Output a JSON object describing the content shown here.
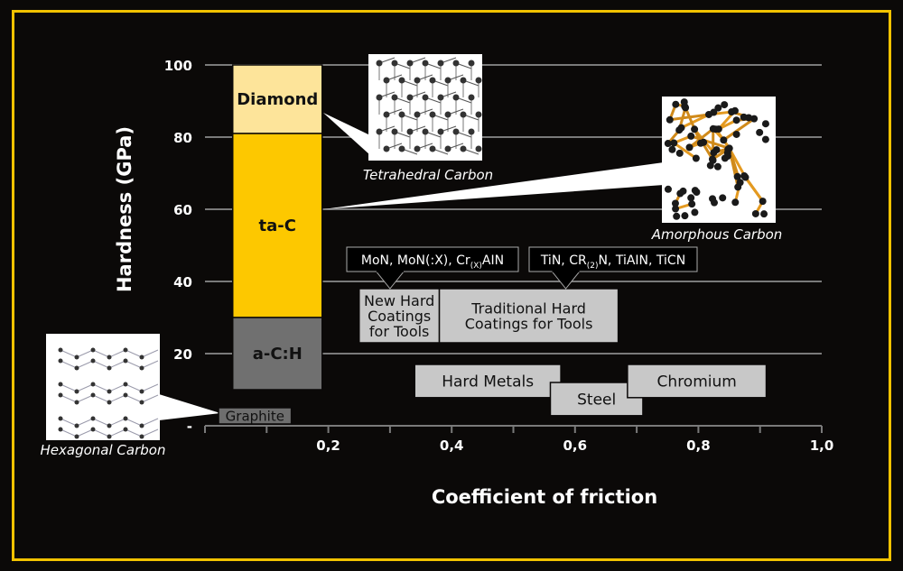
{
  "chart_data": {
    "type": "bar",
    "xlabel": "Coefficient of friction",
    "ylabel": "Hardness (GPa)",
    "xlim": [
      0,
      1.0
    ],
    "ylim": [
      0,
      100
    ],
    "x_ticks": [
      "0,2",
      "0,4",
      "0,6",
      "0,8",
      "1,0"
    ],
    "y_ticks": [
      "-",
      "20",
      "40",
      "60",
      "80",
      "100"
    ],
    "grid": true,
    "materials": [
      {
        "name": "Diamond",
        "friction": [
          0.045,
          0.19
        ],
        "hardness": [
          81,
          100
        ],
        "color": "#fde49a",
        "text_color": "#111111"
      },
      {
        "name": "ta-C",
        "friction": [
          0.045,
          0.19
        ],
        "hardness": [
          30,
          81
        ],
        "color": "#fdc800",
        "text_color": "#111111"
      },
      {
        "name": "a-C:H",
        "friction": [
          0.045,
          0.19
        ],
        "hardness": [
          10,
          30
        ],
        "color": "#707070",
        "text_color": "#111111"
      },
      {
        "name": "Graphite",
        "friction": [
          0.022,
          0.14
        ],
        "hardness": [
          0.5,
          5
        ],
        "color": "#6e6e6e",
        "text_color": "#111111"
      },
      {
        "name": "New Hard Coatings for Tools",
        "lines": [
          "New Hard",
          "Coatings",
          "for Tools"
        ],
        "friction": [
          0.25,
          0.38
        ],
        "hardness": [
          23,
          38
        ],
        "color": "#c8c8c8",
        "text_color": "#111111"
      },
      {
        "name": "Traditional Hard Coatings for Tools",
        "lines": [
          "Traditional Hard",
          "Coatings for Tools"
        ],
        "friction": [
          0.38,
          0.67
        ],
        "hardness": [
          23,
          38
        ],
        "color": "#c8c8c8",
        "text_color": "#111111"
      },
      {
        "name": "Hard Metals",
        "friction": [
          0.34,
          0.577
        ],
        "hardness": [
          7.8,
          17
        ],
        "color": "#c8c8c8",
        "text_color": "#111111"
      },
      {
        "name": "Steel",
        "friction": [
          0.56,
          0.71
        ],
        "hardness": [
          2.8,
          12
        ],
        "color": "#c8c8c8",
        "text_color": "#111111"
      },
      {
        "name": "Chromium",
        "friction": [
          0.685,
          0.91
        ],
        "hardness": [
          7.8,
          17
        ],
        "color": "#c8c8c8",
        "text_color": "#111111"
      }
    ],
    "annotations": [
      {
        "text": "MoN, MoN(:X), Cr",
        "sub": "(X)",
        "after": "AIN",
        "points_to": "New Hard Coatings for Tools"
      },
      {
        "text": "TiN, CR",
        "sub": "(2)",
        "after": "N, TiAIN, TiCN",
        "points_to": "Traditional Hard Coatings for Tools"
      }
    ],
    "images": [
      {
        "caption": "Tetrahedral Carbon",
        "icon": "diamond-lattice",
        "points_to": "Diamond"
      },
      {
        "caption": "Amorphous Carbon",
        "icon": "amorphous-network",
        "points_to": "ta-C"
      },
      {
        "caption": "Hexagonal Carbon",
        "icon": "graphite-layers",
        "points_to": "Graphite"
      }
    ]
  },
  "colors": {
    "frame": "#f2c200",
    "background": "#0b0908",
    "grid": "#7a7a7a"
  }
}
